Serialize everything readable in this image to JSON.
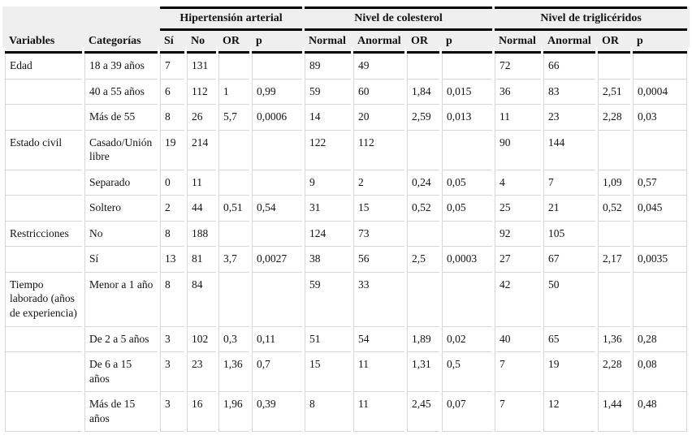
{
  "table": {
    "col_groups": [
      {
        "label": "",
        "span": 2
      },
      {
        "label": "Hipertensión arterial",
        "span": 4
      },
      {
        "label": "Nivel de colesterol",
        "span": 4
      },
      {
        "label": "Nivel de triglicéridos",
        "span": 4
      }
    ],
    "columns": [
      "Variables",
      "Categorías",
      "Sí",
      "No",
      "OR",
      "p",
      "Normal",
      "Anormal",
      "OR",
      "p",
      "Normal",
      "Anormal",
      "OR",
      "p"
    ],
    "rows": [
      [
        "Edad",
        "18 a 39 años",
        "7",
        "131",
        "",
        "",
        "89",
        "49",
        "",
        "",
        "72",
        "66",
        "",
        ""
      ],
      [
        "",
        "40 a 55 años",
        "6",
        "112",
        "1",
        "0,99",
        "59",
        "60",
        "1,84",
        "0,015",
        "36",
        "83",
        "2,51",
        "0,0004"
      ],
      [
        "",
        "Más de 55",
        "8",
        "26",
        "5,7",
        "0,0006",
        "14",
        "20",
        "2,59",
        "0,013",
        "11",
        "23",
        "2,28",
        "0,03"
      ],
      [
        "Estado civil",
        "Casado/Unión libre",
        "19",
        "214",
        "",
        "",
        "122",
        "112",
        "",
        "",
        "90",
        "144",
        "",
        ""
      ],
      [
        "",
        "Separado",
        "0",
        "11",
        "",
        "",
        "9",
        "2",
        "0,24",
        "0,05",
        "4",
        "7",
        "1,09",
        "0,57"
      ],
      [
        "",
        "Soltero",
        "2",
        "44",
        "0,51",
        "0,54",
        "31",
        "15",
        "0,52",
        "0,05",
        "25",
        "21",
        "0,52",
        "0,045"
      ],
      [
        "Restricciones",
        "No",
        "8",
        "188",
        "",
        "",
        "124",
        "73",
        "",
        "",
        "92",
        "105",
        "",
        ""
      ],
      [
        "",
        "Sí",
        "13",
        "81",
        "3,7",
        "0,0027",
        "38",
        "56",
        "2,5",
        "0,0003",
        "27",
        "67",
        "2,17",
        "0,0035"
      ],
      [
        "Tiempo laborado (años de experiencia)",
        "Menor a 1 año",
        "8",
        "84",
        "",
        "",
        "59",
        "33",
        "",
        "",
        "42",
        "50",
        "",
        ""
      ],
      [
        "",
        "De 2 a 5 años",
        "3",
        "102",
        "0,3",
        "0,11",
        "51",
        "54",
        "1,89",
        "0,02",
        "40",
        "65",
        "1,36",
        "0,28"
      ],
      [
        "",
        "De 6 a 15 años",
        "3",
        "23",
        "1,36",
        "0,7",
        "15",
        "11",
        "1,31",
        "0,5",
        "7",
        "19",
        "2,28",
        "0,08"
      ],
      [
        "",
        "Más de 15 años",
        "3",
        "16",
        "1,96",
        "0,39",
        "8",
        "11",
        "2,45",
        "0,07",
        "7",
        "12",
        "1,44",
        "0,48"
      ]
    ],
    "colors": {
      "header_bg": "#efefef",
      "rule_black": "#000000",
      "grid_gray": "#d7d7d7",
      "text": "#121212"
    }
  }
}
